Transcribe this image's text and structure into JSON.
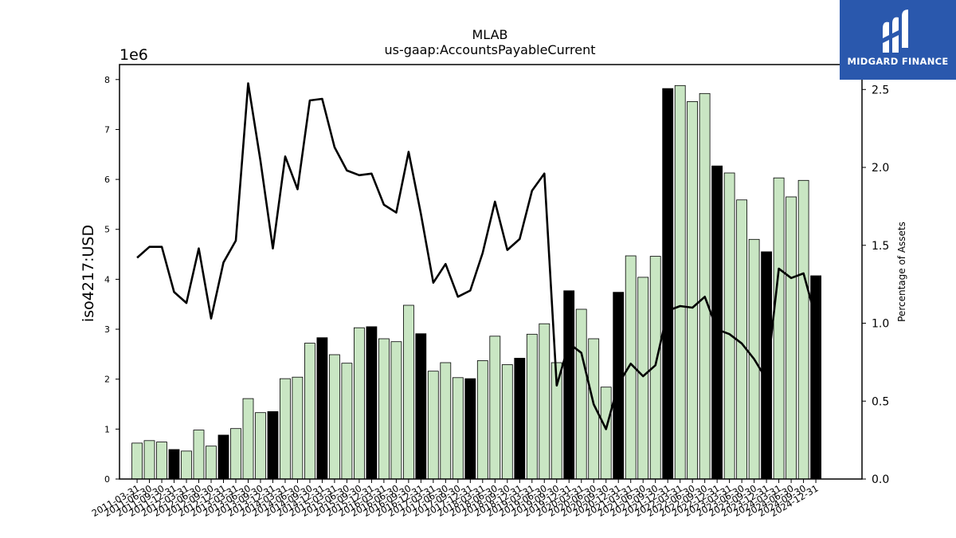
{
  "header": {
    "ticker": "MLAB",
    "concept": "us-gaap:AccountsPayableCurrent"
  },
  "logo": {
    "text": "MIDGARD FINANCE",
    "accent": "#2a58ad"
  },
  "colors": {
    "bar_light": "#c9e6c3",
    "bar_dark": "#000000",
    "line": "#000000"
  },
  "chart_data": {
    "type": "bar",
    "ylabel": "iso4217:USD",
    "y_offset_label": "1e6",
    "y2label": "Percentage of Assets",
    "ylim": [
      0,
      8300000
    ],
    "y2lim": [
      0,
      2.66
    ],
    "yticks": [
      "0",
      "1",
      "2",
      "3",
      "4",
      "5",
      "6",
      "7",
      "8"
    ],
    "y2ticks": [
      "0.0",
      "0.5",
      "1.0",
      "1.5",
      "2.0",
      "2.5"
    ],
    "categories": [
      "2011-03-31",
      "2011-06-30",
      "2011-09-30",
      "2011-12-31",
      "2012-03-31",
      "2012-06-30",
      "2012-09-30",
      "2012-12-31",
      "2013-03-31",
      "2013-06-30",
      "2013-09-30",
      "2013-12-31",
      "2014-03-31",
      "2014-06-30",
      "2014-09-30",
      "2014-12-31",
      "2015-03-31",
      "2015-06-30",
      "2015-09-30",
      "2015-12-31",
      "2016-03-31",
      "2016-06-30",
      "2016-09-30",
      "2016-12-31",
      "2017-03-31",
      "2017-06-30",
      "2017-09-30",
      "2017-12-31",
      "2018-03-31",
      "2018-06-30",
      "2018-09-30",
      "2018-12-31",
      "2019-03-31",
      "2019-06-30",
      "2019-09-30",
      "2019-12-31",
      "2020-03-31",
      "2020-06-30",
      "2020-09-30",
      "2020-12-31",
      "2021-03-31",
      "2021-06-30",
      "2021-09-30",
      "2021-12-31",
      "2022-03-31",
      "2022-06-30",
      "2022-09-30",
      "2022-12-31",
      "2023-03-31",
      "2023-06-30",
      "2023-09-30",
      "2023-12-31",
      "2024-03-31",
      "2024-06-30",
      "2024-09-30",
      "2024-12-31"
    ],
    "series": [
      {
        "kind": "bar",
        "values": [
          720000,
          770000,
          740000,
          590000,
          560000,
          980000,
          660000,
          880000,
          1010000,
          1610000,
          1330000,
          1350000,
          2010000,
          2040000,
          2720000,
          2830000,
          2490000,
          2320000,
          3030000,
          3050000,
          2810000,
          2750000,
          3480000,
          2910000,
          2160000,
          2330000,
          2030000,
          2010000,
          2370000,
          2860000,
          2290000,
          2420000,
          2900000,
          3110000,
          2330000,
          3770000,
          3400000,
          2810000,
          1840000,
          3740000,
          4470000,
          4040000,
          4460000,
          7820000,
          7880000,
          7560000,
          7720000,
          6270000,
          6130000,
          5590000,
          4800000,
          4550000,
          6030000,
          5650000,
          5980000,
          4070000
        ],
        "highlight": [
          false,
          false,
          false,
          true,
          false,
          false,
          false,
          true,
          false,
          false,
          false,
          true,
          false,
          false,
          false,
          true,
          false,
          false,
          false,
          true,
          false,
          false,
          false,
          true,
          false,
          false,
          false,
          true,
          false,
          false,
          false,
          true,
          false,
          false,
          false,
          true,
          false,
          false,
          false,
          true,
          false,
          false,
          false,
          true,
          false,
          false,
          false,
          true,
          false,
          false,
          false,
          true,
          false,
          false,
          false,
          true
        ]
      },
      {
        "kind": "line",
        "axis": "right",
        "values": [
          1.42,
          1.49,
          1.49,
          1.2,
          1.13,
          1.48,
          1.03,
          1.39,
          1.53,
          2.54,
          2.04,
          1.48,
          2.07,
          1.86,
          2.43,
          2.44,
          2.13,
          1.98,
          1.95,
          1.96,
          1.76,
          1.71,
          2.1,
          1.7,
          1.26,
          1.38,
          1.17,
          1.21,
          1.45,
          1.78,
          1.47,
          1.54,
          1.85,
          1.96,
          0.6,
          0.87,
          0.81,
          0.48,
          0.32,
          0.61,
          0.74,
          0.66,
          0.73,
          1.08,
          1.11,
          1.1,
          1.17,
          0.96,
          0.93,
          0.87,
          0.77,
          0.64,
          1.35,
          1.29,
          1.32,
          1.03
        ]
      }
    ]
  }
}
